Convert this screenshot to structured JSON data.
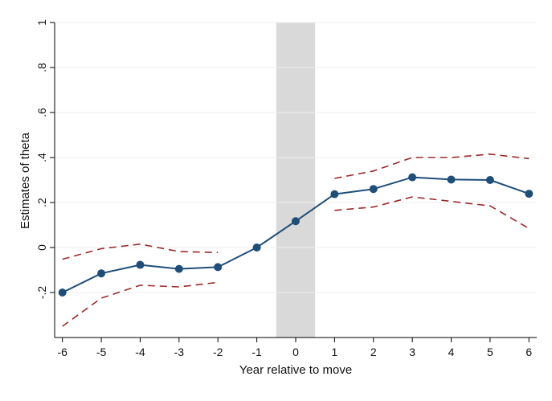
{
  "chart_data": {
    "type": "line",
    "title": "",
    "xlabel": "Year relative to move",
    "ylabel": "Estimates of theta",
    "x": [
      -6,
      -5,
      -4,
      -3,
      -2,
      -1,
      0,
      1,
      2,
      3,
      4,
      5,
      6
    ],
    "xticks": [
      "-6",
      "-5",
      "-4",
      "-3",
      "-2",
      "-1",
      "0",
      "1",
      "2",
      "3",
      "4",
      "5",
      "6"
    ],
    "yticks": [
      {
        "value": -0.2,
        "label": "-.2"
      },
      {
        "value": 0,
        "label": "0"
      },
      {
        "value": 0.2,
        "label": ".2"
      },
      {
        "value": 0.4,
        "label": ".4"
      },
      {
        "value": 0.6,
        "label": ".6"
      },
      {
        "value": 0.8,
        "label": ".8"
      },
      {
        "value": 1,
        "label": "1"
      }
    ],
    "xlim": [
      -6.2,
      6.2
    ],
    "ylim": [
      -0.4,
      1.0
    ],
    "grid": true,
    "shaded_band": {
      "x_from": -0.5,
      "x_to": 0.5,
      "color": "#d9d9d9"
    },
    "series": [
      {
        "role": "estimate",
        "style": "solid-with-markers",
        "color": "#1f4e79",
        "segments": [
          {
            "x": [
              -6,
              -5,
              -4,
              -3,
              -2,
              -1,
              0,
              1,
              2,
              3,
              4,
              5,
              6
            ],
            "y": [
              -0.2,
              -0.115,
              -0.077,
              -0.095,
              -0.087,
              0.0,
              0.117,
              0.237,
              0.26,
              0.312,
              0.302,
              0.3,
              0.239
            ]
          }
        ]
      },
      {
        "role": "upper-ci",
        "style": "dashed",
        "color": "#9c2a2a",
        "segments": [
          {
            "x": [
              -6,
              -5,
              -4,
              -3,
              -2
            ],
            "y": [
              -0.052,
              -0.005,
              0.015,
              -0.018,
              -0.022
            ]
          },
          {
            "x": [
              1,
              2,
              3,
              4,
              5,
              6
            ],
            "y": [
              0.307,
              0.34,
              0.4,
              0.4,
              0.415,
              0.395
            ]
          }
        ]
      },
      {
        "role": "lower-ci",
        "style": "dashed",
        "color": "#9c2a2a",
        "segments": [
          {
            "x": [
              -6,
              -5,
              -4,
              -3,
              -2
            ],
            "y": [
              -0.35,
              -0.225,
              -0.168,
              -0.175,
              -0.155
            ]
          },
          {
            "x": [
              1,
              2,
              3,
              4,
              5,
              6
            ],
            "y": [
              0.165,
              0.18,
              0.225,
              0.205,
              0.185,
              0.085
            ]
          }
        ]
      }
    ]
  }
}
